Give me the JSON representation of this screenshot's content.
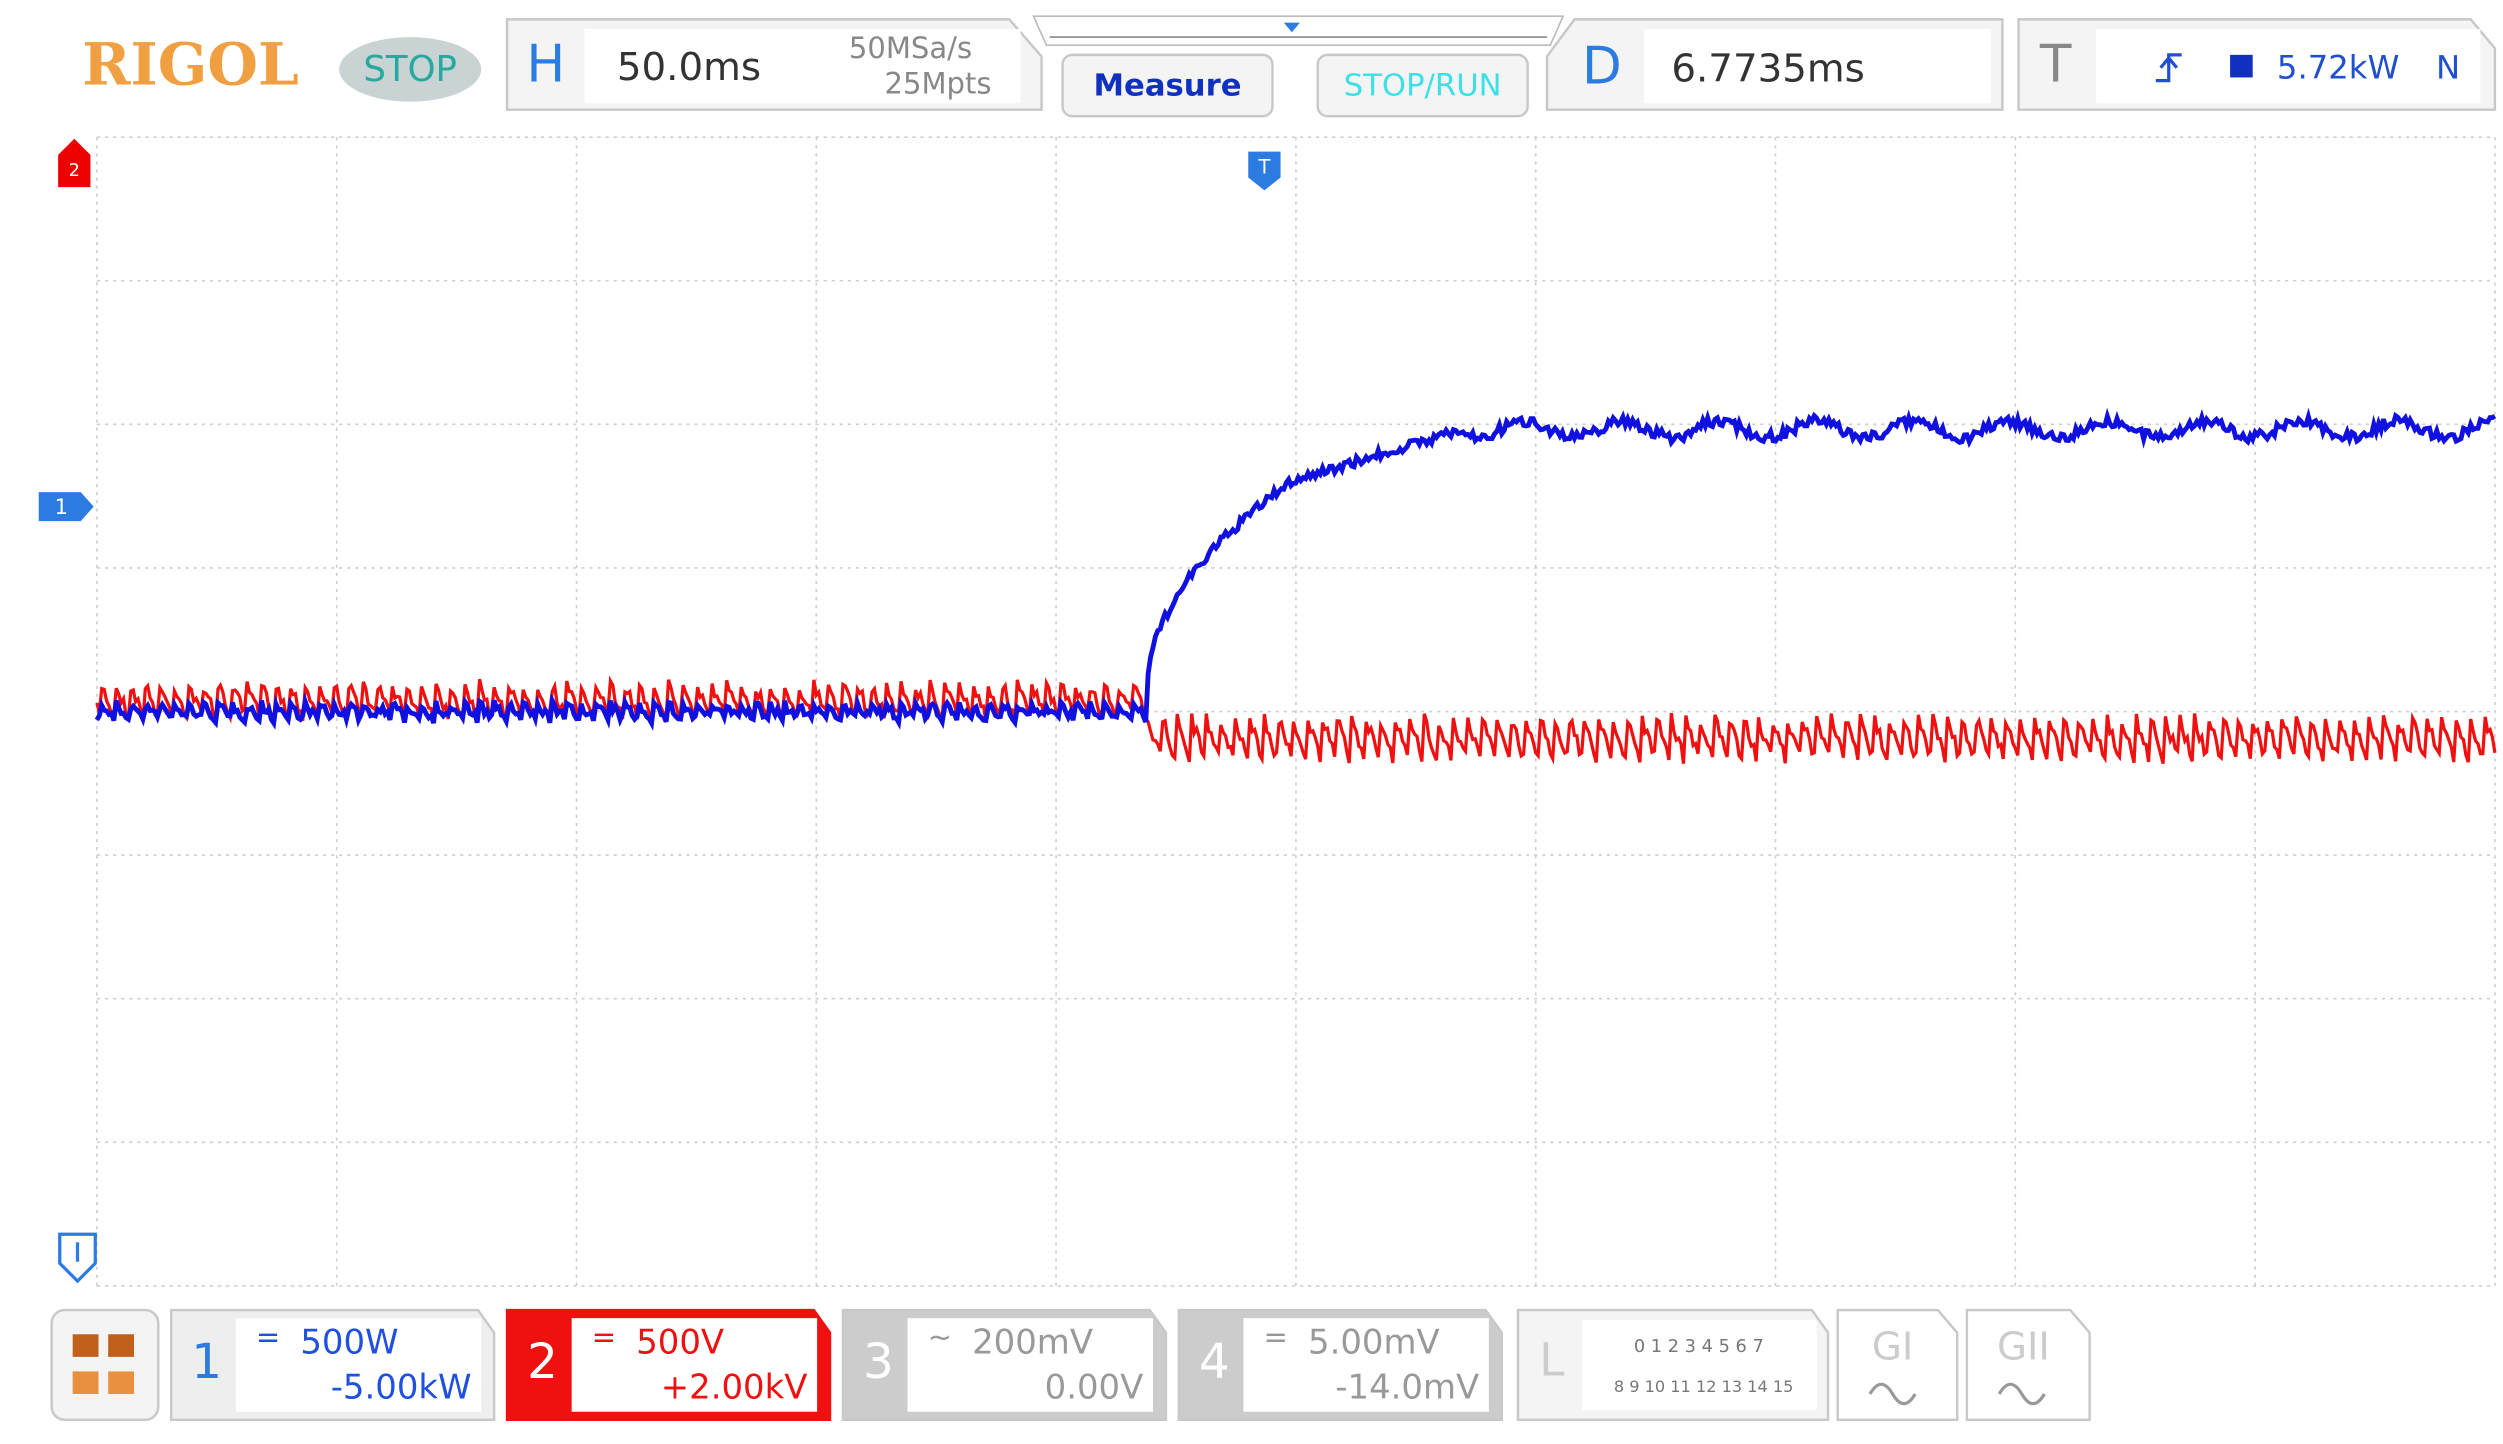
{
  "header": {
    "brand": "RIGOL",
    "status": "STOP",
    "horizontal": {
      "label": "H",
      "timebase": "50.0ms",
      "sample_rate": "50MSa/s",
      "memory_depth": "25Mpts"
    },
    "buttons": [
      "Measure",
      "STOP/RUN"
    ],
    "delay": {
      "label": "D",
      "value": "6.7735ms"
    },
    "trigger": {
      "label": "T",
      "level": "5.72kW",
      "mode": "N"
    }
  },
  "screen_markers": {
    "channel2": "2",
    "channel1": "1",
    "trigger_position": "T"
  },
  "channels": [
    {
      "number": "1",
      "scale": "500W",
      "offset": "-5.00kW"
    },
    {
      "number": "2",
      "scale": "500V",
      "offset": "+2.00kV"
    },
    {
      "number": "3",
      "scale": "200mV",
      "offset": "0.00V"
    },
    {
      "number": "4",
      "scale": "5.00mV",
      "offset": "-14.0mV"
    }
  ],
  "logic": {
    "label": "L",
    "bits_low": "0 1 2 3 4 5 6 7",
    "bits_high": "8 9 10 11 12 13 14 15"
  },
  "generators": [
    "GI",
    "GII"
  ]
}
